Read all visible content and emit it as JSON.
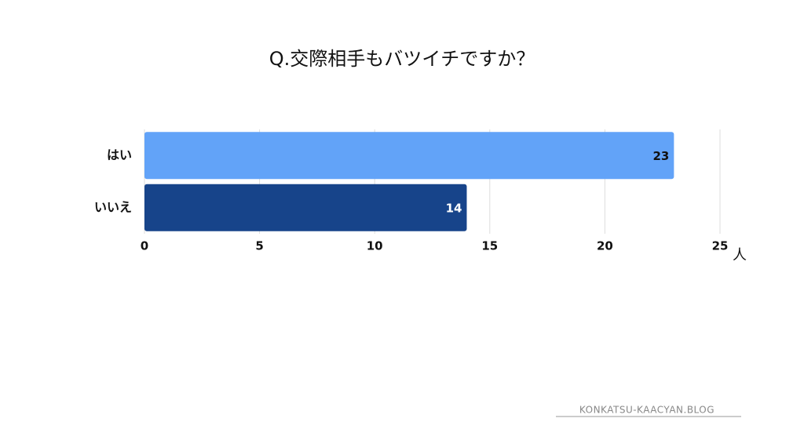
{
  "chart_data": {
    "type": "bar",
    "orientation": "horizontal",
    "title": "Q.交際相手もバツイチですか？",
    "categories": [
      "はい",
      "いいえ"
    ],
    "values": [
      23,
      14
    ],
    "colors": [
      "#62a3f8",
      "#17448a"
    ],
    "value_label_colors": [
      "#111111",
      "#ffffff"
    ],
    "xlim": [
      0,
      25
    ],
    "xticks": [
      0,
      5,
      10,
      15,
      20,
      25
    ],
    "x_unit": "人",
    "grid": true,
    "watermark": "KONKATSU-KAACYAN.BLOG"
  }
}
